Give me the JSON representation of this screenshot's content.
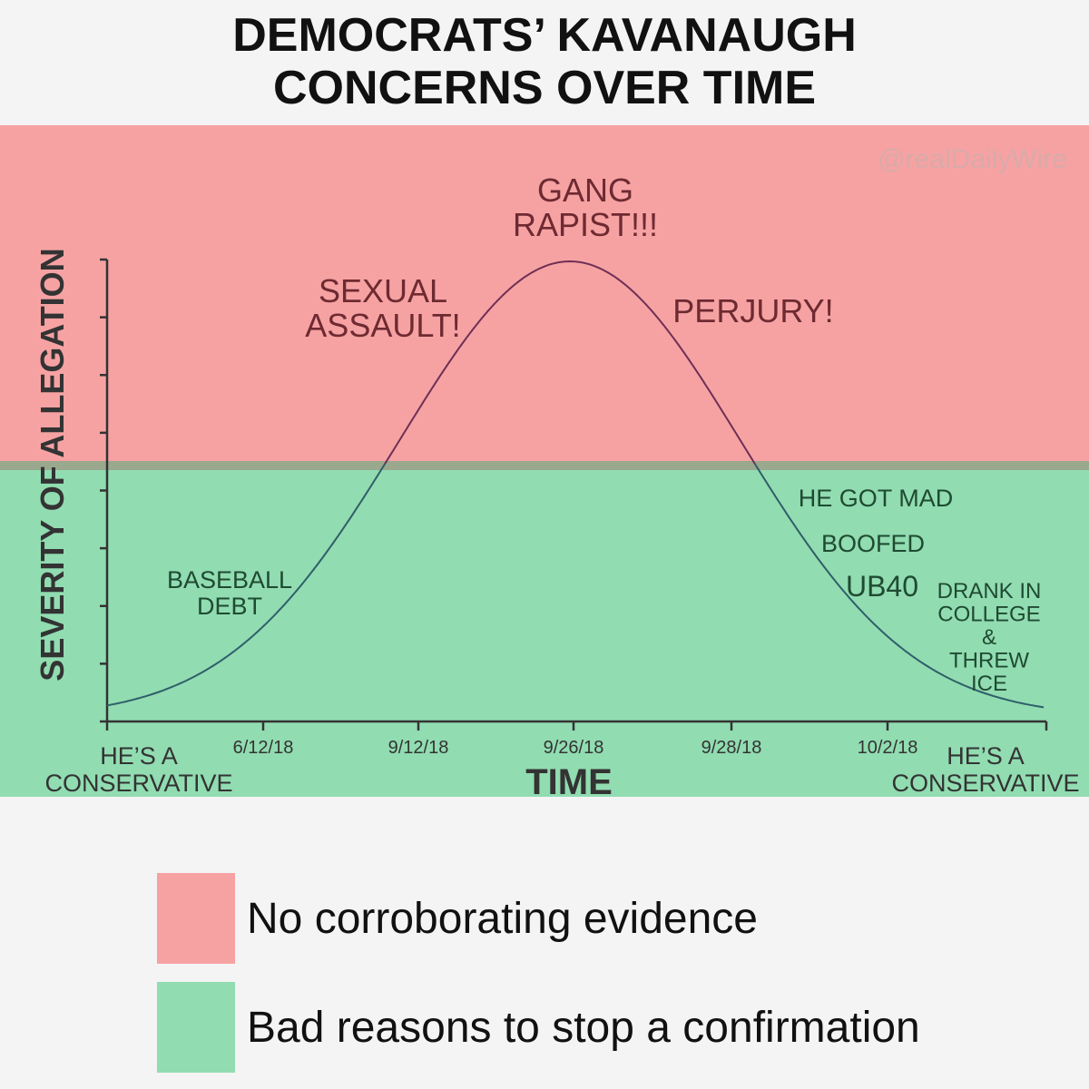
{
  "title_lines": [
    "DEMOCRATS’ KAVANAUGH",
    "CONCERNS OVER TIME"
  ],
  "watermark": "@realDailyWire",
  "colors": {
    "red_band": "#f6a2a3",
    "green_band": "#91dcb1",
    "divider": "#9aa88e",
    "curve_top": "#6f2f55",
    "curve_bottom": "#2f5f6a",
    "red_text": "#6e2a31",
    "green_text": "#1f4a32",
    "axis": "#333333"
  },
  "chart_data": {
    "type": "line",
    "ylabel": "SEVERITY OF ALLEGATION",
    "xlabel": "TIME",
    "x_tick_labels": [
      "6/12/18",
      "9/12/18",
      "9/26/18",
      "9/28/18",
      "10/2/18"
    ],
    "x_end_labels": {
      "left": [
        "HE’S A",
        "CONSERVATIVE"
      ],
      "right": [
        "HE’S A",
        "CONSERVATIVE"
      ]
    },
    "curve": "bell",
    "y_ticks": 9,
    "annotations": {
      "red": [
        {
          "id": "gang",
          "lines": [
            "GANG",
            "RAPIST!!!"
          ]
        },
        {
          "id": "sexual",
          "lines": [
            "SEXUAL",
            "ASSAULT!"
          ]
        },
        {
          "id": "perjury",
          "lines": [
            "PERJURY!"
          ]
        }
      ],
      "green": [
        {
          "id": "baseball",
          "lines": [
            "BASEBALL",
            "DEBT"
          ]
        },
        {
          "id": "mad",
          "lines": [
            "HE GOT MAD"
          ]
        },
        {
          "id": "boofed",
          "lines": [
            "BOOFED"
          ]
        },
        {
          "id": "ub40",
          "lines": [
            "UB40"
          ]
        },
        {
          "id": "drank",
          "lines": [
            "DRANK IN",
            "COLLEGE",
            "&",
            "THREW",
            "ICE"
          ]
        }
      ]
    }
  },
  "legend": [
    {
      "color": "#f6a2a3",
      "label": "No corroborating evidence"
    },
    {
      "color": "#91dcb1",
      "label": "Bad reasons to stop a confirmation"
    }
  ]
}
